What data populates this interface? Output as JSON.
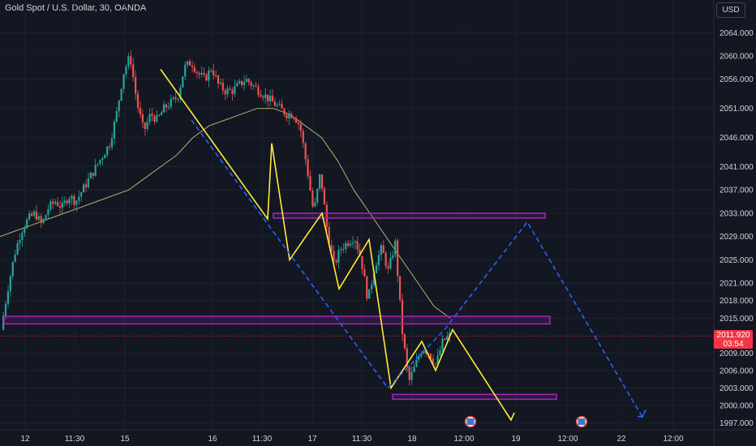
{
  "header": {
    "title": "Gold Spot / U.S. Dollar, 30, OANDA",
    "currency_button": "USD"
  },
  "last_price": {
    "value": "2011.920",
    "countdown": "03:54",
    "color": "#f23645"
  },
  "chart_data": {
    "type": "line",
    "title": "Gold Spot / U.S. Dollar, 30, OANDA",
    "y_ticks": [
      1997,
      2000,
      2003,
      2006,
      2009,
      2015,
      2018,
      2021,
      2025,
      2029,
      2033,
      2037,
      2041,
      2046,
      2051,
      2056,
      2060,
      2064
    ],
    "y_tick_labels": [
      "1997.000",
      "2000.000",
      "2003.000",
      "2006.000",
      "2009.000",
      "2015.000",
      "2018.000",
      "2021.000",
      "2025.000",
      "2029.000",
      "2033.000",
      "2037.000",
      "2041.000",
      "2046.000",
      "2051.000",
      "2056.000",
      "2060.000",
      "2064.000"
    ],
    "x_tick_labels": [
      "12",
      "11:30",
      "15",
      "16",
      "11:30",
      "17",
      "11:30",
      "18",
      "12:00",
      "19",
      "12:00",
      "22",
      "12:00"
    ],
    "ylim": [
      1996,
      2067
    ],
    "price_path": [
      2013,
      2020,
      2026,
      2030,
      2032,
      2033,
      2031,
      2034,
      2035,
      2034,
      2036,
      2035,
      2037,
      2039,
      2041,
      2043,
      2045,
      2050,
      2057,
      2060,
      2052,
      2047,
      2050,
      2049,
      2051,
      2052,
      2053,
      2058,
      2059,
      2057,
      2056,
      2058,
      2055,
      2054,
      2054,
      2055,
      2056,
      2055,
      2054,
      2053,
      2052,
      2051,
      2050,
      2050,
      2048,
      2041,
      2033,
      2040,
      2030,
      2024,
      2027,
      2028,
      2029,
      2025,
      2018,
      2024,
      2027,
      2023,
      2028,
      2013,
      2004,
      2007,
      2010,
      2009,
      2007,
      2011,
      2012
    ],
    "moving_average": [
      2029,
      2030,
      2031,
      2032,
      2033,
      2034,
      2035,
      2036,
      2037,
      2039,
      2041,
      2043,
      2046,
      2048,
      2049,
      2050,
      2051,
      2051,
      2050,
      2048,
      2046,
      2042,
      2037,
      2033,
      2029,
      2025,
      2021,
      2017,
      2015
    ],
    "zones": [
      {
        "from": 2032.6,
        "to": 2033.0,
        "label": ""
      },
      {
        "from": 2014.0,
        "to": 2015.3,
        "label": ""
      },
      {
        "from": 2001.2,
        "to": 2001.9,
        "label": ""
      }
    ],
    "projection_low": 1998.0,
    "projection_high": 2031.5,
    "colors": {
      "bull": "#26a69a",
      "bear": "#ef5350",
      "pattern": "#ffeb3b",
      "projection": "#2962ff",
      "zone": "#9c27b0",
      "ma": "#b5b36a"
    },
    "grid": true
  }
}
